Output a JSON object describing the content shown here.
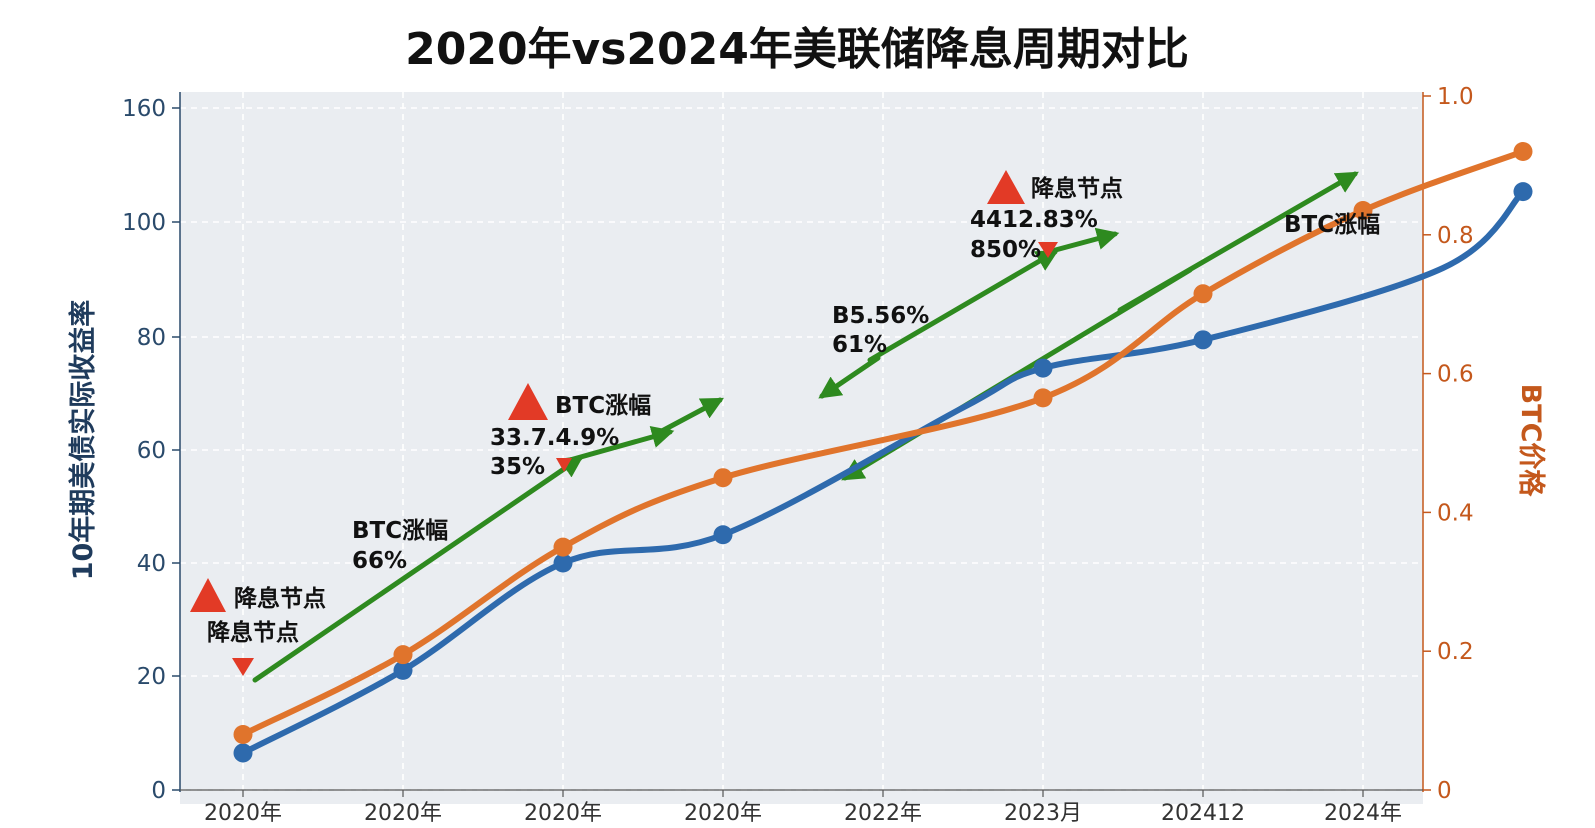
{
  "chart_data": {
    "type": "line",
    "title": "2020年vs2024年美联储降息周期对比",
    "ylabel": "10年期美债实际收益率",
    "ylabel_right": "BTC价格",
    "ylim": [
      0,
      160
    ],
    "ylim_right": [
      0,
      1.0
    ],
    "yticks": [
      0,
      20,
      40,
      60,
      80,
      100,
      160
    ],
    "yticks_right": [
      "0",
      "0.2",
      "0.4",
      "0.6",
      "0.8",
      "1.0"
    ],
    "categories": [
      "2020年",
      "2020年",
      "2020年",
      "2020年",
      "2022年",
      "2023月",
      "202412",
      "2024年"
    ],
    "grid": true,
    "colors": {
      "blue": "#2e6aad",
      "orange": "#e0742c",
      "green": "#2e8a1f",
      "red": "#e23a26"
    },
    "series": [
      {
        "axis": "left",
        "color": "#2e6aad",
        "points": [
          [
            0,
            6.5
          ],
          [
            1,
            21
          ],
          [
            2,
            40
          ],
          [
            3,
            45
          ],
          [
            4.5,
            67.5
          ],
          [
            5,
            74.5
          ],
          [
            6,
            79.5
          ],
          [
            7.5,
            92
          ],
          [
            8,
            116
          ]
        ]
      },
      {
        "axis": "right",
        "color": "#e0742c",
        "points": [
          [
            0,
            0.08
          ],
          [
            1,
            0.195
          ],
          [
            2,
            0.35
          ],
          [
            3,
            0.45
          ],
          [
            5,
            0.565
          ],
          [
            6,
            0.715
          ],
          [
            7,
            0.835
          ],
          [
            8,
            0.92
          ]
        ]
      }
    ],
    "annotations": [
      {
        "id": "a1",
        "line1": "降息节点",
        "line2": "降息节点"
      },
      {
        "id": "a2",
        "line1": "BTC涨幅",
        "line2": "66%"
      },
      {
        "id": "a3",
        "line1": "BTC涨幅",
        "line2": "33.7.4.9%",
        "line3": "35%"
      },
      {
        "id": "a4",
        "line1": "B5.56%",
        "line2": "61%"
      },
      {
        "id": "a5",
        "line1": "降息节点",
        "line2": "4412.83%",
        "line3": "850%"
      },
      {
        "id": "a6",
        "line1": "BTC涨幅"
      }
    ]
  }
}
